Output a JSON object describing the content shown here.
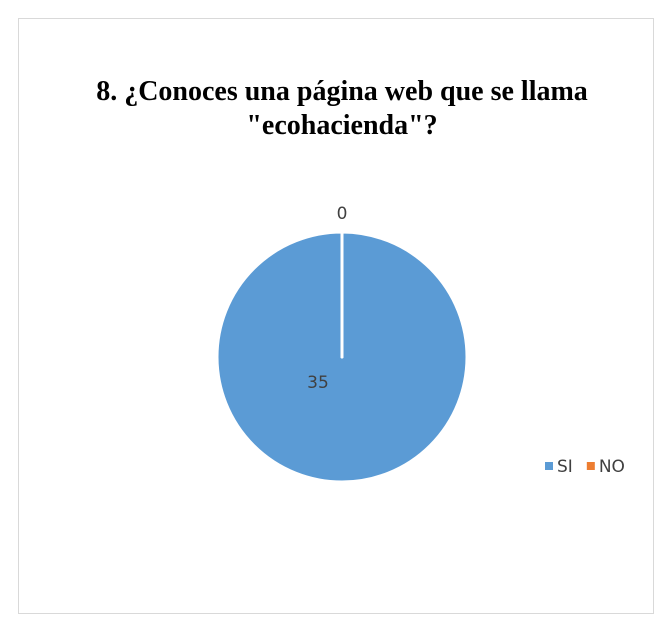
{
  "chart_data": {
    "type": "pie",
    "title": "8. ¿Conoces una página web que se llama \"ecohacienda\"?",
    "categories": [
      "SI",
      "NO"
    ],
    "values": [
      35,
      0
    ],
    "colors": [
      "#5b9bd5",
      "#ed7d31"
    ],
    "legend": "right"
  }
}
